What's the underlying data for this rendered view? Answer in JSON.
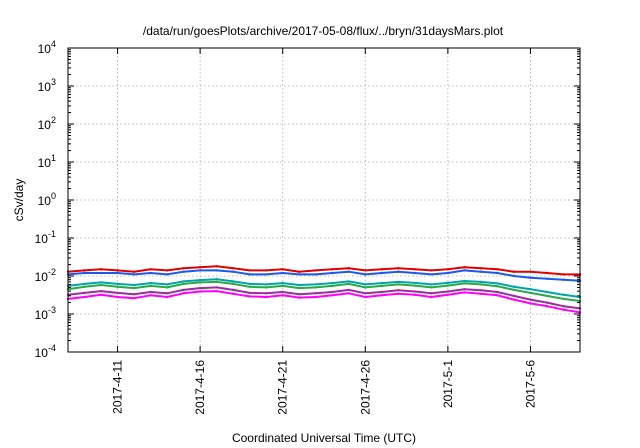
{
  "chart_data": {
    "type": "line",
    "title": "/data/run/goesPlots/archive/2017-05-08/flux/../bryn/31daysMars.plot",
    "xlabel": "Coordinated Universal Time (UTC)",
    "ylabel": "cSv/day",
    "yscale": "log",
    "ylim": [
      0.0001,
      10000
    ],
    "xlim": [
      "2017-04-08T00:00",
      "2017-05-09T00:00"
    ],
    "y_ticks": [
      {
        "base": "10",
        "exp": "-4"
      },
      {
        "base": "10",
        "exp": "-3"
      },
      {
        "base": "10",
        "exp": "-2"
      },
      {
        "base": "10",
        "exp": "-1"
      },
      {
        "base": "10",
        "exp": "0"
      },
      {
        "base": "10",
        "exp": "1"
      },
      {
        "base": "10",
        "exp": "2"
      },
      {
        "base": "10",
        "exp": "3"
      },
      {
        "base": "10",
        "exp": "4"
      }
    ],
    "x_ticks": [
      {
        "date": "2017-04-11",
        "label": "2017-4-11"
      },
      {
        "date": "2017-04-16",
        "label": "2017-4-16"
      },
      {
        "date": "2017-04-21",
        "label": "2017-4-21"
      },
      {
        "date": "2017-04-26",
        "label": "2017-4-26"
      },
      {
        "date": "2017-05-01",
        "label": "2017-5-1"
      },
      {
        "date": "2017-05-06",
        "label": "2017-5-6"
      }
    ],
    "grid": true,
    "x": [
      "2017-04-08",
      "2017-04-09",
      "2017-04-10",
      "2017-04-11",
      "2017-04-12",
      "2017-04-13",
      "2017-04-14",
      "2017-04-15",
      "2017-04-16",
      "2017-04-17",
      "2017-04-18",
      "2017-04-19",
      "2017-04-20",
      "2017-04-21",
      "2017-04-22",
      "2017-04-23",
      "2017-04-24",
      "2017-04-25",
      "2017-04-26",
      "2017-04-27",
      "2017-04-28",
      "2017-04-29",
      "2017-04-30",
      "2017-05-01",
      "2017-05-02",
      "2017-05-03",
      "2017-05-04",
      "2017-05-05",
      "2017-05-06",
      "2017-05-07",
      "2017-05-08",
      "2017-05-09"
    ],
    "series": [
      {
        "color": "#e00000",
        "values": [
          0.013,
          0.014,
          0.015,
          0.014,
          0.013,
          0.015,
          0.014,
          0.016,
          0.017,
          0.018,
          0.016,
          0.014,
          0.014,
          0.015,
          0.013,
          0.014,
          0.015,
          0.016,
          0.014,
          0.015,
          0.016,
          0.015,
          0.014,
          0.015,
          0.017,
          0.016,
          0.015,
          0.013,
          0.013,
          0.012,
          0.011,
          0.011
        ]
      },
      {
        "color": "#1a5ae8",
        "values": [
          0.011,
          0.012,
          0.012,
          0.012,
          0.011,
          0.012,
          0.011,
          0.013,
          0.014,
          0.014,
          0.013,
          0.011,
          0.011,
          0.012,
          0.011,
          0.011,
          0.012,
          0.013,
          0.011,
          0.012,
          0.013,
          0.012,
          0.011,
          0.012,
          0.014,
          0.013,
          0.012,
          0.01,
          0.009,
          0.0085,
          0.008,
          0.0075
        ]
      },
      {
        "color": "#00a6a6",
        "values": [
          0.0055,
          0.0062,
          0.0068,
          0.0062,
          0.0058,
          0.0065,
          0.006,
          0.0072,
          0.0078,
          0.0082,
          0.0072,
          0.0062,
          0.006,
          0.0065,
          0.0058,
          0.006,
          0.0065,
          0.0072,
          0.006,
          0.0065,
          0.007,
          0.0066,
          0.006,
          0.0066,
          0.0074,
          0.007,
          0.0064,
          0.0052,
          0.0045,
          0.0038,
          0.0032,
          0.0028
        ]
      },
      {
        "color": "#2aa84a",
        "values": [
          0.0045,
          0.0052,
          0.0058,
          0.0052,
          0.0048,
          0.0055,
          0.005,
          0.0062,
          0.0068,
          0.007,
          0.0062,
          0.0052,
          0.005,
          0.0055,
          0.0048,
          0.005,
          0.0055,
          0.0062,
          0.005,
          0.0055,
          0.006,
          0.0056,
          0.005,
          0.0056,
          0.0064,
          0.006,
          0.0054,
          0.0043,
          0.0036,
          0.003,
          0.0025,
          0.0022
        ]
      },
      {
        "color": "#9a2ea0",
        "values": [
          0.0032,
          0.0036,
          0.004,
          0.0036,
          0.0033,
          0.0038,
          0.0035,
          0.0043,
          0.0048,
          0.005,
          0.0043,
          0.0036,
          0.0035,
          0.0038,
          0.0033,
          0.0035,
          0.0038,
          0.0043,
          0.0035,
          0.0038,
          0.0042,
          0.0039,
          0.0035,
          0.0039,
          0.0045,
          0.0042,
          0.0038,
          0.003,
          0.0024,
          0.002,
          0.0016,
          0.0014
        ]
      },
      {
        "color": "#ff00ff",
        "values": [
          0.0025,
          0.0028,
          0.0032,
          0.0028,
          0.0026,
          0.0031,
          0.0028,
          0.0035,
          0.0039,
          0.004,
          0.0034,
          0.0029,
          0.0028,
          0.0031,
          0.0027,
          0.0028,
          0.0031,
          0.0035,
          0.0028,
          0.0031,
          0.0034,
          0.0032,
          0.0028,
          0.0032,
          0.0037,
          0.0034,
          0.0031,
          0.0024,
          0.0019,
          0.0016,
          0.0013,
          0.0011
        ]
      }
    ]
  }
}
